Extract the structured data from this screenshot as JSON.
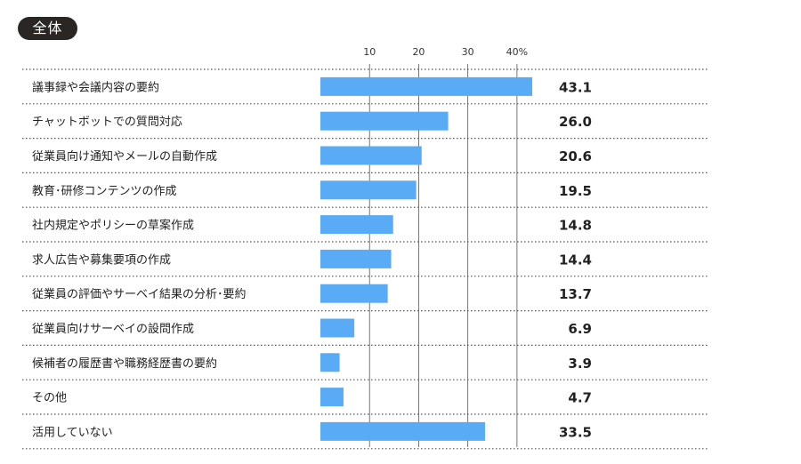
{
  "badge": "全体",
  "chart_data": {
    "type": "bar",
    "orientation": "horizontal",
    "categories": [
      "議事録や会議内容の要約",
      "チャットボットでの質問対応",
      "従業員向け通知やメールの自動作成",
      "教育･研修コンテンツの作成",
      "社内規定やポリシーの草案作成",
      "求人広告や募集要項の作成",
      "従業員の評価やサーベイ結果の分析･要約",
      "従業員向けサーベイの設問作成",
      "候補者の履歴書や職務経歴書の要約",
      "その他",
      "活用していない"
    ],
    "values": [
      43.1,
      26.0,
      20.6,
      19.5,
      14.8,
      14.4,
      13.7,
      6.9,
      3.9,
      4.7,
      33.5
    ],
    "value_labels": [
      "43.1",
      "26.0",
      "20.6",
      "19.5",
      "14.8",
      "14.4",
      "13.7",
      "6.9",
      "3.9",
      "4.7",
      "33.5"
    ],
    "ticks": [
      10,
      20,
      30,
      40
    ],
    "tick_labels": [
      "10",
      "20",
      "30",
      "40%"
    ],
    "xlim": [
      0,
      43.1
    ],
    "bar_color": "#5aabf6",
    "grid": true
  }
}
